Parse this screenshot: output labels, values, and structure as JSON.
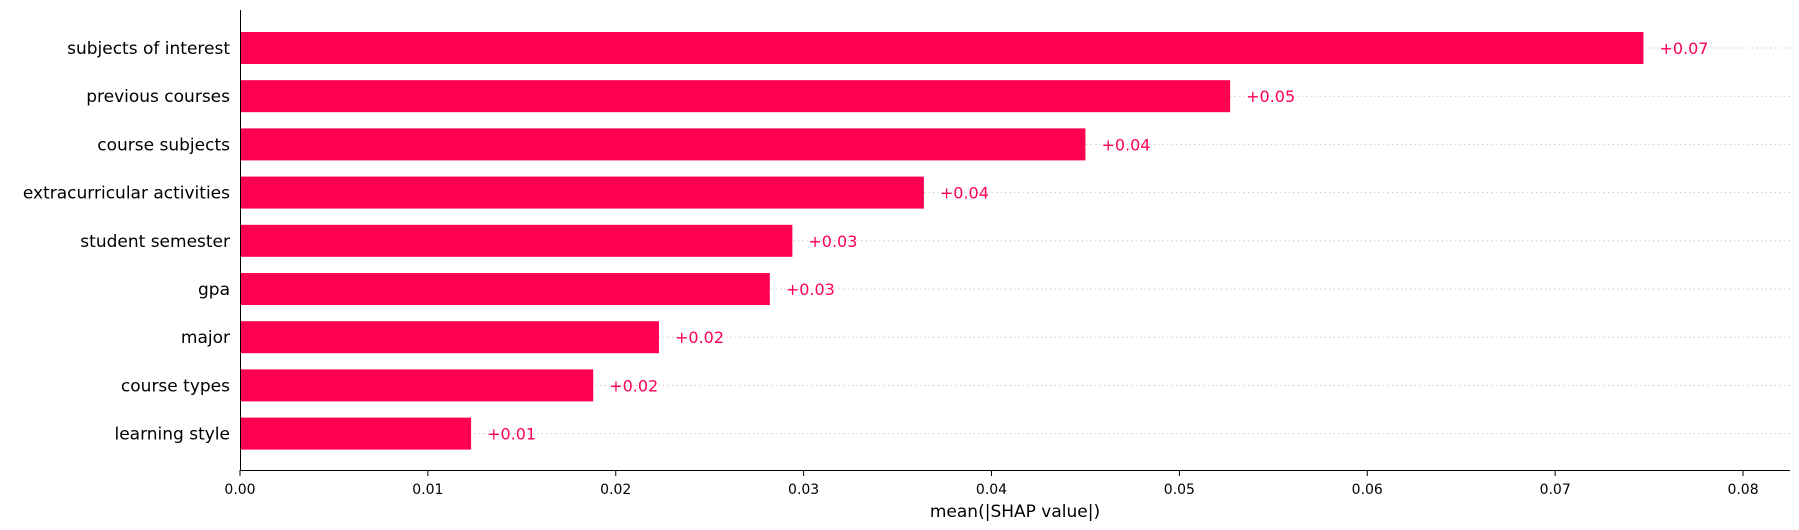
{
  "chart_data": {
    "type": "bar",
    "orientation": "horizontal",
    "categories": [
      "subjects of interest",
      "previous courses",
      "course subjects",
      "extracurricular activities",
      "student semester",
      "gpa",
      "major",
      "course types",
      "learning style"
    ],
    "values": [
      0.0747,
      0.0527,
      0.045,
      0.0364,
      0.0294,
      0.0282,
      0.0223,
      0.0188,
      0.0123
    ],
    "value_labels": [
      "+0.07",
      "+0.05",
      "+0.04",
      "+0.04",
      "+0.03",
      "+0.03",
      "+0.02",
      "+0.02",
      "+0.01"
    ],
    "xlabel": "mean(|SHAP value|)",
    "xlim": [
      0,
      0.0825
    ],
    "xticks": [
      0.0,
      0.01,
      0.02,
      0.03,
      0.04,
      0.05,
      0.06,
      0.07,
      0.08
    ],
    "xtick_labels": [
      "0.00",
      "0.01",
      "0.02",
      "0.03",
      "0.04",
      "0.05",
      "0.06",
      "0.07",
      "0.08"
    ],
    "bar_color": "#ff0051",
    "label_color": "#ff0051",
    "gridlines": "dotted horizontal row guides",
    "legend": "none"
  }
}
